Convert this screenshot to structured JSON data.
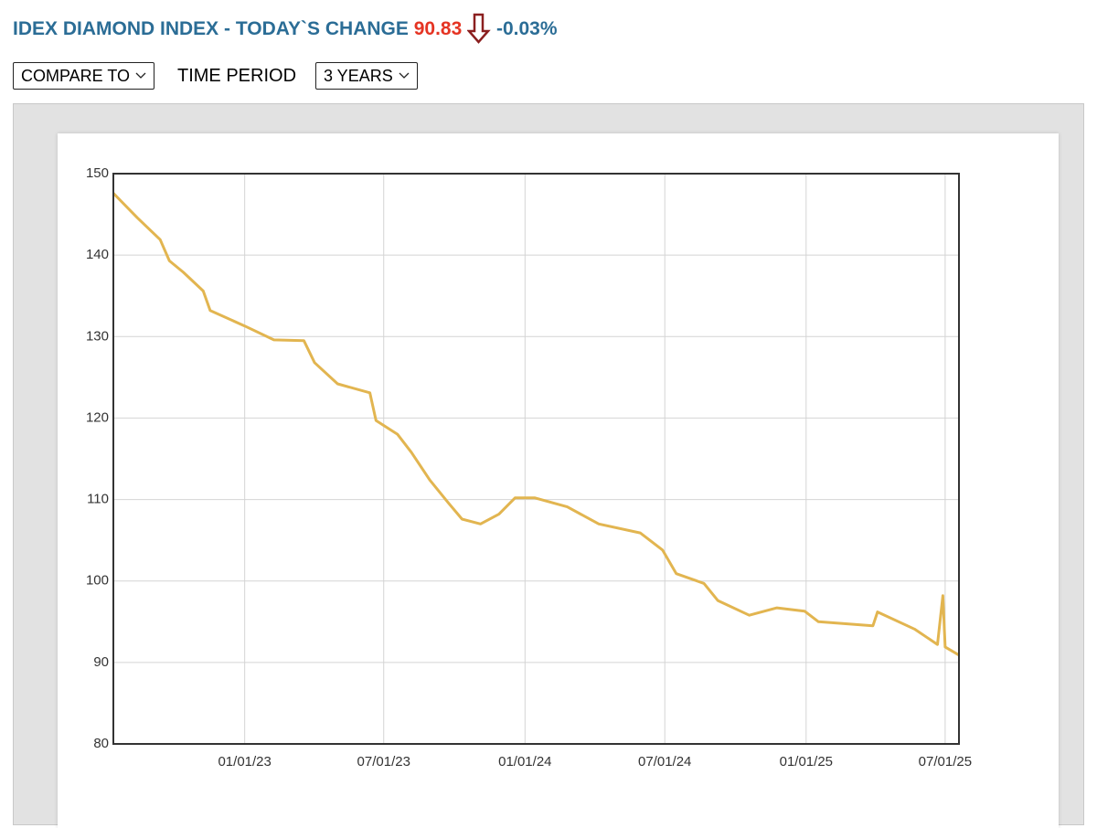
{
  "header": {
    "title": "IDEX DIAMOND INDEX - TODAY`S CHANGE",
    "value": "90.83",
    "change": "-0.03%"
  },
  "controls": {
    "compare": "COMPARE TO",
    "time_period_label": "TIME PERIOD",
    "time_period": "3 YEARS"
  },
  "chart_data": {
    "type": "line",
    "color": "#e2b550",
    "grid": true,
    "x": [
      "07/14/22",
      "08/14/22",
      "09/13/22",
      "09/25/22",
      "10/13/22",
      "11/08/22",
      "11/17/22",
      "01/01/23",
      "02/08/23",
      "03/19/23",
      "04/02/23",
      "05/02/23",
      "06/13/23",
      "06/21/23",
      "07/19/23",
      "08/06/23",
      "08/30/23",
      "09/23/23",
      "10/11/23",
      "11/04/23",
      "11/28/23",
      "12/19/23",
      "01/14/24",
      "02/25/24",
      "04/06/24",
      "05/30/24",
      "06/28/24",
      "07/16/24",
      "08/21/24",
      "09/08/24",
      "10/19/24",
      "11/24/24",
      "12/30/24",
      "01/17/25",
      "03/29/25",
      "04/04/25",
      "05/22/25",
      "06/21/25",
      "06/28/25",
      "07/01/25",
      "07/19/25"
    ],
    "values": [
      147.6,
      144.6,
      141.9,
      139.3,
      137.9,
      135.6,
      133.2,
      131.3,
      129.6,
      129.5,
      126.8,
      124.2,
      123.1,
      119.7,
      118.0,
      115.8,
      112.4,
      109.6,
      107.6,
      107.0,
      108.2,
      110.2,
      110.2,
      109.1,
      107.0,
      105.9,
      103.8,
      100.9,
      99.7,
      97.6,
      95.8,
      96.7,
      96.3,
      95.0,
      94.5,
      96.2,
      94.1,
      92.2,
      98.2,
      91.9,
      90.9
    ],
    "xlim": [
      "07/14/22",
      "07/19/25"
    ],
    "xticks": [
      "01/01/23",
      "07/01/23",
      "01/01/24",
      "07/01/24",
      "01/01/25",
      "07/01/25"
    ],
    "ylim": [
      80,
      150
    ],
    "yticks": [
      80,
      90,
      100,
      110,
      120,
      130,
      140,
      150
    ]
  }
}
